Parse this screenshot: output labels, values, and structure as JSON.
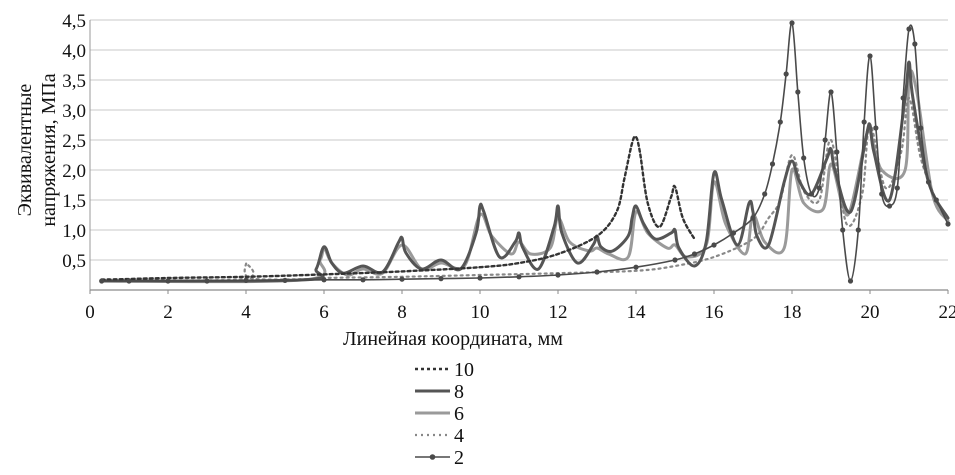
{
  "chart_data": {
    "type": "line",
    "title": "",
    "xlabel": "Линейная координата, мм",
    "ylabel_line1": "Эквивалентные",
    "ylabel_line2": "напряжения, МПа",
    "xlim": [
      0,
      22
    ],
    "ylim": [
      0,
      4.5
    ],
    "x_ticks": [
      {
        "v": 0,
        "label": "0"
      },
      {
        "v": 2,
        "label": "2"
      },
      {
        "v": 4,
        "label": "4"
      },
      {
        "v": 6,
        "label": "6"
      },
      {
        "v": 8,
        "label": "8"
      },
      {
        "v": 10,
        "label": "10"
      },
      {
        "v": 12,
        "label": "12"
      },
      {
        "v": 14,
        "label": "14"
      },
      {
        "v": 16,
        "label": "16"
      },
      {
        "v": 18,
        "label": "18"
      },
      {
        "v": 20,
        "label": "20"
      },
      {
        "v": 22,
        "label": "22"
      }
    ],
    "y_ticks": [
      {
        "v": 0.5,
        "label": "0,5"
      },
      {
        "v": 1.0,
        "label": "1,0"
      },
      {
        "v": 1.5,
        "label": "1,5"
      },
      {
        "v": 2.0,
        "label": "2,0"
      },
      {
        "v": 2.5,
        "label": "2,5"
      },
      {
        "v": 3.0,
        "label": "3,0"
      },
      {
        "v": 3.5,
        "label": "3,5"
      },
      {
        "v": 4.0,
        "label": "4,0"
      },
      {
        "v": 4.5,
        "label": "4,5"
      }
    ],
    "grid": "horizontal",
    "legend_position": "bottom-center",
    "series": [
      {
        "name": "10",
        "style": "dotted",
        "color": "#333333",
        "x": [
          0.3,
          2,
          4,
          6,
          8,
          10,
          11,
          12,
          13,
          13.5,
          13.7,
          13.9,
          14.0,
          14.1,
          14.3,
          14.6,
          14.9,
          15.0,
          15.2,
          15.5
        ],
        "y": [
          0.17,
          0.2,
          0.22,
          0.26,
          0.31,
          0.38,
          0.45,
          0.6,
          0.9,
          1.3,
          1.85,
          2.45,
          2.55,
          2.3,
          1.45,
          1.05,
          1.55,
          1.72,
          1.2,
          0.85
        ]
      },
      {
        "name": "8",
        "style": "solid",
        "color": "#555555",
        "x": [
          0.3,
          5.5,
          5.8,
          6.0,
          6.2,
          6.5,
          7.0,
          7.5,
          7.9,
          8.0,
          8.1,
          8.5,
          9.0,
          9.5,
          9.9,
          10.0,
          10.1,
          10.5,
          10.9,
          11.0,
          11.1,
          11.5,
          11.9,
          12.0,
          12.1,
          12.5,
          12.9,
          13.0,
          13.1,
          13.4,
          13.8,
          13.9,
          14.0,
          14.2,
          14.5,
          14.9,
          15.0,
          15.1,
          15.5,
          15.8,
          16.0,
          16.2,
          16.6,
          16.9,
          17.0,
          17.1,
          17.4,
          17.8,
          18.0,
          18.2,
          18.5,
          18.9,
          19.0,
          19.1,
          19.5,
          19.9,
          20.0,
          20.1,
          20.5,
          20.9,
          21.0,
          21.1,
          21.5,
          22.0
        ],
        "y": [
          0.15,
          0.17,
          0.35,
          0.72,
          0.45,
          0.28,
          0.4,
          0.3,
          0.78,
          0.87,
          0.62,
          0.35,
          0.5,
          0.35,
          0.95,
          1.4,
          1.3,
          0.55,
          0.8,
          0.95,
          0.7,
          0.35,
          1.05,
          1.4,
          0.95,
          0.45,
          0.75,
          0.9,
          0.72,
          0.65,
          0.9,
          1.2,
          1.4,
          1.1,
          0.85,
          0.95,
          1.0,
          0.7,
          0.4,
          0.8,
          1.95,
          1.5,
          0.75,
          1.45,
          1.3,
          0.9,
          0.75,
          1.8,
          2.15,
          1.8,
          1.6,
          2.2,
          2.35,
          2.0,
          1.3,
          2.55,
          2.75,
          2.3,
          1.5,
          3.2,
          3.8,
          3.2,
          1.8,
          1.2
        ]
      },
      {
        "name": "6",
        "style": "solid-light",
        "color": "#9a9a9a",
        "x": [
          0.3,
          5.5,
          5.9,
          6.0,
          6.2,
          6.6,
          7.0,
          7.5,
          8.0,
          8.5,
          9.0,
          9.6,
          10.0,
          10.3,
          10.8,
          11.0,
          11.3,
          11.8,
          12.0,
          12.3,
          12.8,
          13.0,
          13.3,
          13.8,
          14.0,
          14.3,
          14.8,
          15.0,
          15.3,
          15.8,
          16.0,
          16.3,
          16.8,
          17.0,
          17.3,
          17.8,
          18.0,
          18.3,
          18.8,
          19.0,
          19.3,
          19.5,
          19.9,
          20.0,
          20.3,
          20.9,
          21.0,
          21.2,
          21.6,
          22.0
        ],
        "y": [
          0.15,
          0.17,
          0.5,
          0.7,
          0.45,
          0.25,
          0.35,
          0.28,
          0.75,
          0.35,
          0.45,
          0.4,
          1.25,
          0.9,
          0.6,
          0.8,
          0.6,
          0.7,
          1.2,
          0.8,
          0.65,
          0.7,
          0.6,
          0.55,
          1.3,
          0.95,
          0.7,
          0.75,
          0.55,
          0.75,
          1.8,
          1.1,
          0.6,
          1.25,
          0.8,
          0.7,
          2.0,
          1.45,
          1.35,
          2.1,
          1.4,
          1.35,
          2.55,
          2.65,
          2.0,
          2.0,
          3.55,
          3.3,
          1.6,
          1.15
        ]
      },
      {
        "name": "4",
        "style": "dotted-light",
        "color": "#888888",
        "x": [
          0.3,
          3.9,
          4.0,
          4.1,
          5.5,
          6.0,
          8.0,
          10.0,
          12.0,
          14.0,
          15.0,
          16.0,
          17.0,
          17.4,
          17.7,
          18.0,
          18.3,
          18.7,
          19.0,
          19.4,
          19.8,
          20.0,
          20.4,
          20.8,
          21.0,
          21.3,
          21.7,
          22.0
        ],
        "y": [
          0.18,
          0.18,
          0.45,
          0.2,
          0.18,
          0.2,
          0.22,
          0.25,
          0.28,
          0.32,
          0.4,
          0.55,
          0.85,
          1.2,
          1.5,
          2.25,
          1.65,
          1.5,
          2.5,
          1.1,
          1.6,
          2.75,
          1.7,
          2.3,
          3.2,
          2.2,
          1.5,
          1.2
        ]
      },
      {
        "name": "2",
        "style": "marker",
        "color": "#4a4a4a",
        "x": [
          0.3,
          1,
          2,
          3,
          4,
          5,
          6,
          7,
          8,
          9,
          10,
          11,
          12,
          13,
          14,
          15,
          15.5,
          16.0,
          16.5,
          17.0,
          17.3,
          17.5,
          17.7,
          17.85,
          18.0,
          18.15,
          18.3,
          18.5,
          18.7,
          18.85,
          19.0,
          19.15,
          19.3,
          19.5,
          19.7,
          19.85,
          20.0,
          20.15,
          20.3,
          20.5,
          20.7,
          20.85,
          21.0,
          21.15,
          21.3,
          21.5,
          21.7,
          22.0
        ],
        "y": [
          0.15,
          0.15,
          0.15,
          0.15,
          0.16,
          0.16,
          0.17,
          0.17,
          0.18,
          0.19,
          0.2,
          0.22,
          0.25,
          0.3,
          0.38,
          0.5,
          0.6,
          0.75,
          0.95,
          1.2,
          1.6,
          2.1,
          2.8,
          3.6,
          4.45,
          3.3,
          2.2,
          1.6,
          1.7,
          2.5,
          3.3,
          2.3,
          1.0,
          0.15,
          1.0,
          2.8,
          3.9,
          2.7,
          1.6,
          1.4,
          1.7,
          3.2,
          4.35,
          4.1,
          2.7,
          1.8,
          1.5,
          1.1
        ]
      }
    ]
  }
}
